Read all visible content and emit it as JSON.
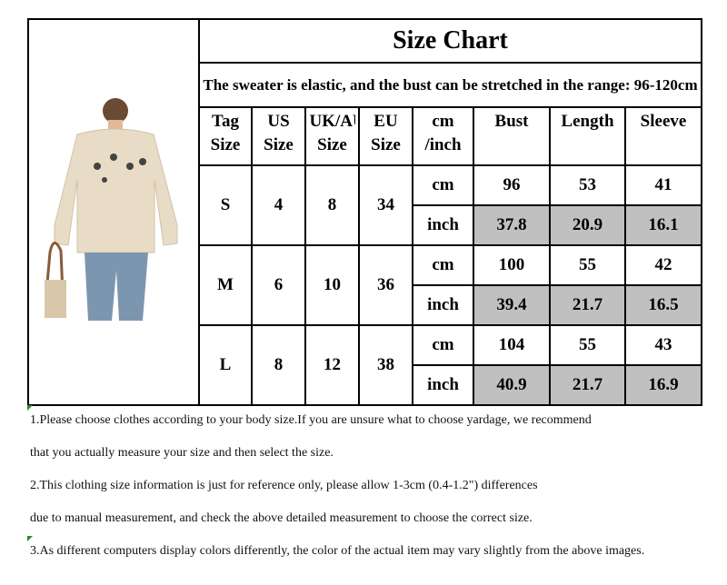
{
  "title": "Size Chart",
  "subtitle": "The sweater is elastic, and the bust can be stretched in the range: 96-120cm",
  "headers": [
    "Tag Size",
    "US Size",
    "UK/AU Size",
    "EU Size",
    "cm /inch",
    "Bust",
    "Length",
    "Sleeve"
  ],
  "sizes": [
    {
      "tag": "S",
      "us": "4",
      "uk": "8",
      "eu": "34",
      "cm": [
        "96",
        "53",
        "41"
      ],
      "inch": [
        "37.8",
        "20.9",
        "16.1"
      ]
    },
    {
      "tag": "M",
      "us": "6",
      "uk": "10",
      "eu": "36",
      "cm": [
        "100",
        "55",
        "42"
      ],
      "inch": [
        "39.4",
        "21.7",
        "16.5"
      ]
    },
    {
      "tag": "L",
      "us": "8",
      "uk": "12",
      "eu": "38",
      "cm": [
        "104",
        "55",
        "43"
      ],
      "inch": [
        "40.9",
        "21.7",
        "16.9"
      ]
    }
  ],
  "unit_cm": "cm",
  "unit_inch": "inch",
  "notes": [
    "1.Please choose clothes according to your body size.If you are unsure what to choose yardage, we recommend",
    "that you actually measure your size and then select the size.",
    "2.This clothing size information is just for reference only, please allow 1-3cm (0.4-1.2\") differences",
    "due to manual measurement, and check the above detailed measurement to choose the correct size.",
    "3.As different computers display colors differently, the color of the actual item may vary slightly from the  above images."
  ],
  "colors": {
    "highlight": "#c0c0c0",
    "sweater": "#e8dcc6"
  }
}
